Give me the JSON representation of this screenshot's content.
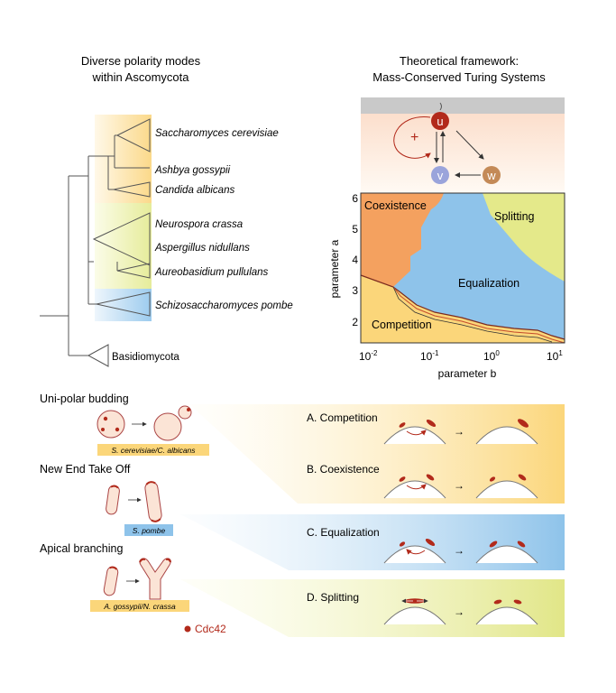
{
  "left_panel": {
    "title_line1": "Diverse polarity modes",
    "title_line2": "within Ascomycota",
    "species": [
      "Saccharomyces cerevisiae",
      "Ashbya gossypii",
      "Candida albicans",
      "Neurospora crassa",
      "Aspergillus nidullans",
      "Aureobasidium pullulans",
      "Schizosaccharomyces pombe"
    ],
    "outgroup": "Basidiomycota"
  },
  "right_panel": {
    "title_line1": "Theoretical framework:",
    "title_line2": "Mass-Conserved Turing Systems",
    "nodes": {
      "u": "u",
      "v": "v",
      "w": "w"
    },
    "plus_sign": "+",
    "phase": {
      "regions": [
        "Coexistence",
        "Splitting",
        "Equalization",
        "Competition"
      ],
      "ylabel": "parameter a",
      "xlabel": "parameter  b",
      "yticks": [
        "6",
        "5",
        "4",
        "3",
        "2"
      ],
      "xtick_base": "10",
      "xtick_exps": [
        "-2",
        "-1",
        "0",
        "1"
      ]
    }
  },
  "bottom_panel": {
    "modes": [
      {
        "label": "Uni-polar budding",
        "species_tag": "S. cerevisiae/C. albicans"
      },
      {
        "label": "New End Take Off",
        "species_tag": "S. pombe"
      },
      {
        "label": "Apical branching",
        "species_tag": "A. gossypii/N. crassa"
      }
    ],
    "legend": "Cdc42",
    "outcomes": [
      "A. Competition",
      "B. Coexistence",
      "C. Equalization",
      "D. Splitting"
    ],
    "arrow": "→"
  },
  "colors": {
    "orange": "#f4a15f",
    "yellow": "#fbd67a",
    "blue": "#8ec3ea",
    "green": "#e4e98a",
    "red": "#b22a1b",
    "purple": "#9aa4db",
    "tan": "#c48a57"
  }
}
